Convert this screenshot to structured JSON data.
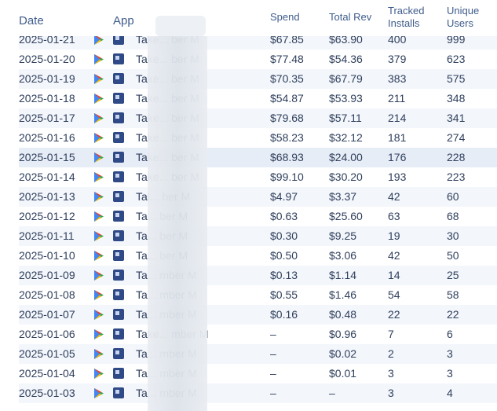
{
  "header": {
    "date": "Date",
    "app": "App",
    "spend": "Spend",
    "total_rev": "Total Rev",
    "tracked_installs_1": "Tracked",
    "tracked_installs_2": "Installs",
    "unique_users_1": "Unique",
    "unique_users_2": "Users"
  },
  "rows": [
    {
      "date": "2025-01-21",
      "app": "Take... ber M",
      "spend": "$67.85",
      "rev": "$63.90",
      "installs": "400",
      "users": "999"
    },
    {
      "date": "2025-01-20",
      "app": "Take... ber M",
      "spend": "$77.48",
      "rev": "$54.36",
      "installs": "379",
      "users": "623"
    },
    {
      "date": "2025-01-19",
      "app": "Take... ber M",
      "spend": "$70.35",
      "rev": "$67.79",
      "installs": "383",
      "users": "575"
    },
    {
      "date": "2025-01-18",
      "app": "Take... ber M",
      "spend": "$54.87",
      "rev": "$53.93",
      "installs": "211",
      "users": "348"
    },
    {
      "date": "2025-01-17",
      "app": "Take... ber M",
      "spend": "$79.68",
      "rev": "$57.11",
      "installs": "214",
      "users": "341"
    },
    {
      "date": "2025-01-16",
      "app": "Take... ber M",
      "spend": "$58.23",
      "rev": "$32.12",
      "installs": "181",
      "users": "274"
    },
    {
      "date": "2025-01-15",
      "app": "Take... ber M",
      "spend": "$68.93",
      "rev": "$24.00",
      "installs": "176",
      "users": "228"
    },
    {
      "date": "2025-01-14",
      "app": "Take... ber M",
      "spend": "$99.10",
      "rev": "$30.20",
      "installs": "193",
      "users": "223"
    },
    {
      "date": "2025-01-13",
      "app": "Tal... ber M",
      "spend": "$4.97",
      "rev": "$3.37",
      "installs": "42",
      "users": "60"
    },
    {
      "date": "2025-01-12",
      "app": "Ta... ber M",
      "spend": "$0.63",
      "rev": "$25.60",
      "installs": "63",
      "users": "68"
    },
    {
      "date": "2025-01-11",
      "app": "Ta... ber M",
      "spend": "$0.30",
      "rev": "$9.25",
      "installs": "19",
      "users": "30"
    },
    {
      "date": "2025-01-10",
      "app": "Ta... ber M",
      "spend": "$0.50",
      "rev": "$3.06",
      "installs": "42",
      "users": "50"
    },
    {
      "date": "2025-01-09",
      "app": "Ta... mber M",
      "spend": "$0.13",
      "rev": "$1.14",
      "installs": "14",
      "users": "25"
    },
    {
      "date": "2025-01-08",
      "app": "Ta... mber M",
      "spend": "$0.55",
      "rev": "$1.46",
      "installs": "54",
      "users": "58"
    },
    {
      "date": "2025-01-07",
      "app": "Ta... mber M",
      "spend": "$0.16",
      "rev": "$0.48",
      "installs": "22",
      "users": "22"
    },
    {
      "date": "2025-01-06",
      "app": "Take... mber M",
      "spend": "–",
      "rev": "$0.96",
      "installs": "7",
      "users": "6"
    },
    {
      "date": "2025-01-05",
      "app": "Ta... mber M",
      "spend": "–",
      "rev": "$0.02",
      "installs": "2",
      "users": "3"
    },
    {
      "date": "2025-01-04",
      "app": "Ta... mber M",
      "spend": "–",
      "rev": "$0.01",
      "installs": "3",
      "users": "3"
    },
    {
      "date": "2025-01-03",
      "app": "Ta... mber M",
      "spend": "–",
      "rev": "–",
      "installs": "3",
      "users": "4"
    }
  ],
  "icons": {
    "play_store": "google-play-icon",
    "app_icon": "app-icon"
  },
  "colors": {
    "header_text": "#3f5c8c",
    "row_stripe": "#f3f6fb",
    "highlight_row": "#e7edf6"
  }
}
